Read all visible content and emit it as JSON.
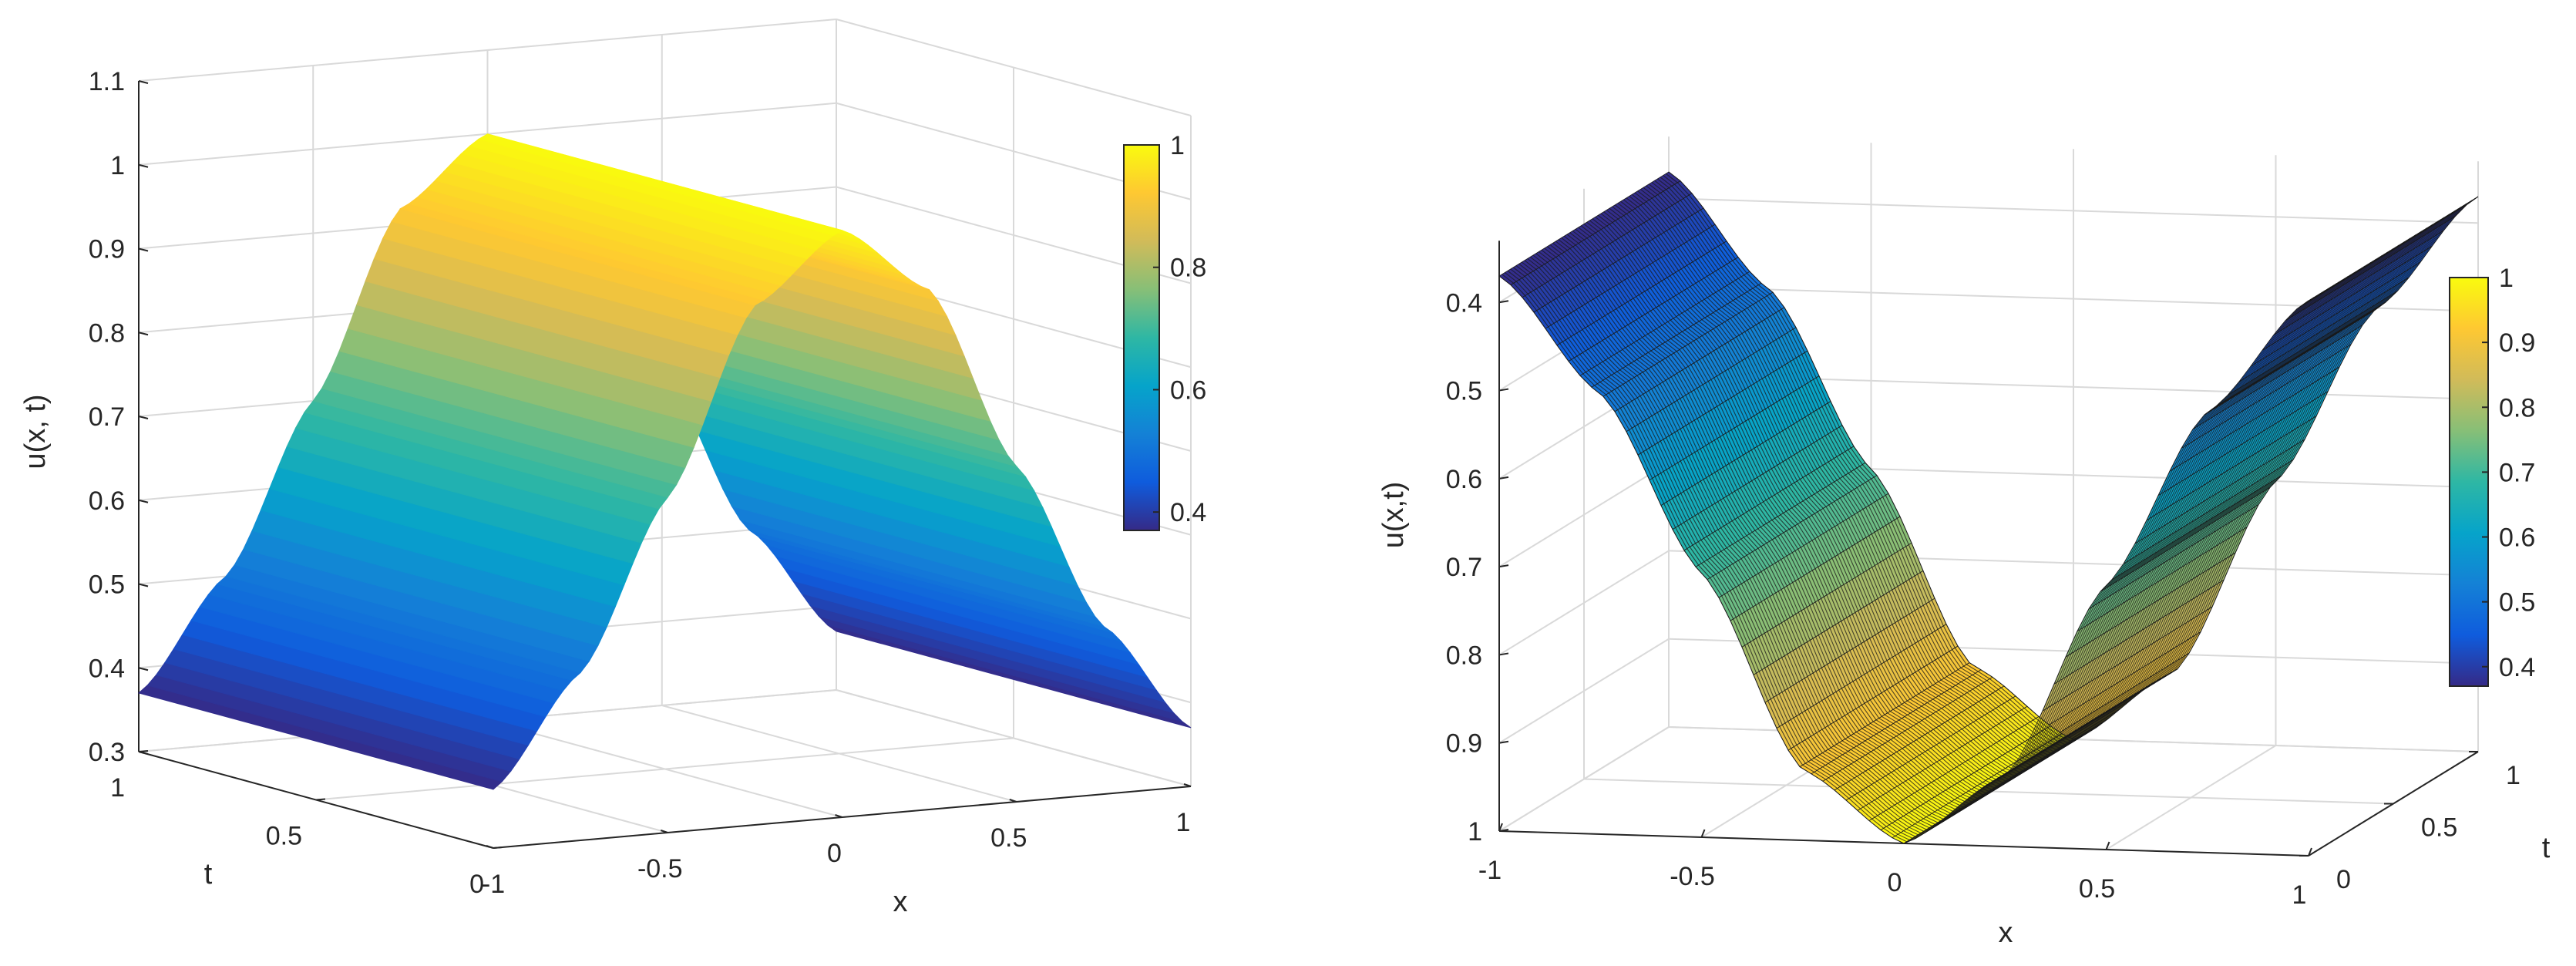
{
  "chart_data": [
    {
      "type": "surface",
      "title": "",
      "xlabel": "x",
      "ylabel": "t",
      "zlabel": "u(x, t)",
      "x_ticks": [
        "-1",
        "-0.5",
        "0",
        "0.5",
        "1"
      ],
      "t_ticks": [
        "0",
        "0.5",
        "1"
      ],
      "z_ticks": [
        "0.3",
        "0.4",
        "0.5",
        "0.6",
        "0.7",
        "0.8",
        "0.9",
        "1",
        "1.1"
      ],
      "xlim": [
        -1,
        1
      ],
      "tlim": [
        0,
        1
      ],
      "zlim": [
        0.3,
        1.1
      ],
      "x_values": [
        -1,
        -0.75,
        -0.5,
        -0.25,
        0,
        0.25,
        0.5,
        0.75,
        1
      ],
      "u_values": [
        0.37,
        0.5,
        0.7,
        0.92,
        1.0,
        0.92,
        0.7,
        0.5,
        0.37
      ],
      "colorbar": {
        "ticks": [
          "0.4",
          "0.6",
          "0.8",
          "1"
        ],
        "min": 0.37,
        "max": 1.0
      },
      "grid": true
    },
    {
      "type": "surface",
      "title": "",
      "xlabel": "x",
      "ylabel": "t",
      "zlabel": "u(x,t)",
      "x_ticks": [
        "-1",
        "-0.5",
        "0",
        "0.5",
        "1"
      ],
      "t_ticks": [
        "0",
        "0.5",
        "1"
      ],
      "z_ticks": [
        "0.4",
        "0.5",
        "0.6",
        "0.7",
        "0.8",
        "0.9",
        "1"
      ],
      "xlim": [
        -1,
        1
      ],
      "tlim": [
        0,
        1
      ],
      "zlim": [
        0.37,
        1.0
      ],
      "z_reversed": true,
      "x_values": [
        -1,
        -0.75,
        -0.5,
        -0.25,
        0,
        0.25,
        0.5,
        0.75,
        1
      ],
      "u_values": [
        0.37,
        0.5,
        0.7,
        0.92,
        1.0,
        0.92,
        0.7,
        0.5,
        0.37
      ],
      "colorbar": {
        "ticks": [
          "0.4",
          "0.5",
          "0.6",
          "0.7",
          "0.8",
          "0.9",
          "1"
        ],
        "min": 0.37,
        "max": 1.0
      },
      "grid": true
    }
  ],
  "colors": {
    "parula": [
      "#352a87",
      "#0f5cdd",
      "#1481d6",
      "#06a4ca",
      "#2eb7a4",
      "#87bf77",
      "#d1bb59",
      "#fec832",
      "#f9fb0e"
    ],
    "mesh_line": "#1a1a1a",
    "grid": "#d9d9d9",
    "axis": "#262626"
  }
}
